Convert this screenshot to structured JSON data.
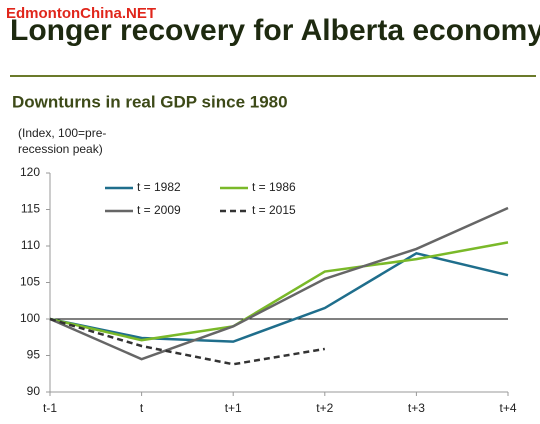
{
  "watermark": "EdmontonChina.NET",
  "chart_data": {
    "type": "line",
    "title": "Longer recovery for Alberta economy",
    "subtitle": "Downturns in real GDP since 1980",
    "y_label": [
      "(Index, 100=pre-",
      "recession peak)"
    ],
    "categories": [
      "t-1",
      "t",
      "t+1",
      "t+2",
      "t+3",
      "t+4"
    ],
    "series": [
      {
        "name": "t = 1982",
        "color": "#1f6e8c",
        "dash": false,
        "values": [
          100,
          97.4,
          96.9,
          101.5,
          109,
          106
        ]
      },
      {
        "name": "t = 1986",
        "color": "#7ab929",
        "dash": false,
        "values": [
          100,
          97.1,
          99,
          106.5,
          108.2,
          110.5
        ]
      },
      {
        "name": "t = 2009",
        "color": "#666666",
        "dash": false,
        "values": [
          100,
          94.5,
          99,
          105.5,
          109.6,
          115.2
        ]
      },
      {
        "name": "t = 2015",
        "color": "#333333",
        "dash": true,
        "values": [
          100,
          96.3,
          93.8,
          95.9,
          null,
          null
        ]
      }
    ],
    "reference_line": 100,
    "ylim": [
      90,
      120
    ],
    "yticks": [
      90,
      95,
      100,
      105,
      110,
      115,
      120
    ],
    "grid": false,
    "legend": "upper left"
  }
}
